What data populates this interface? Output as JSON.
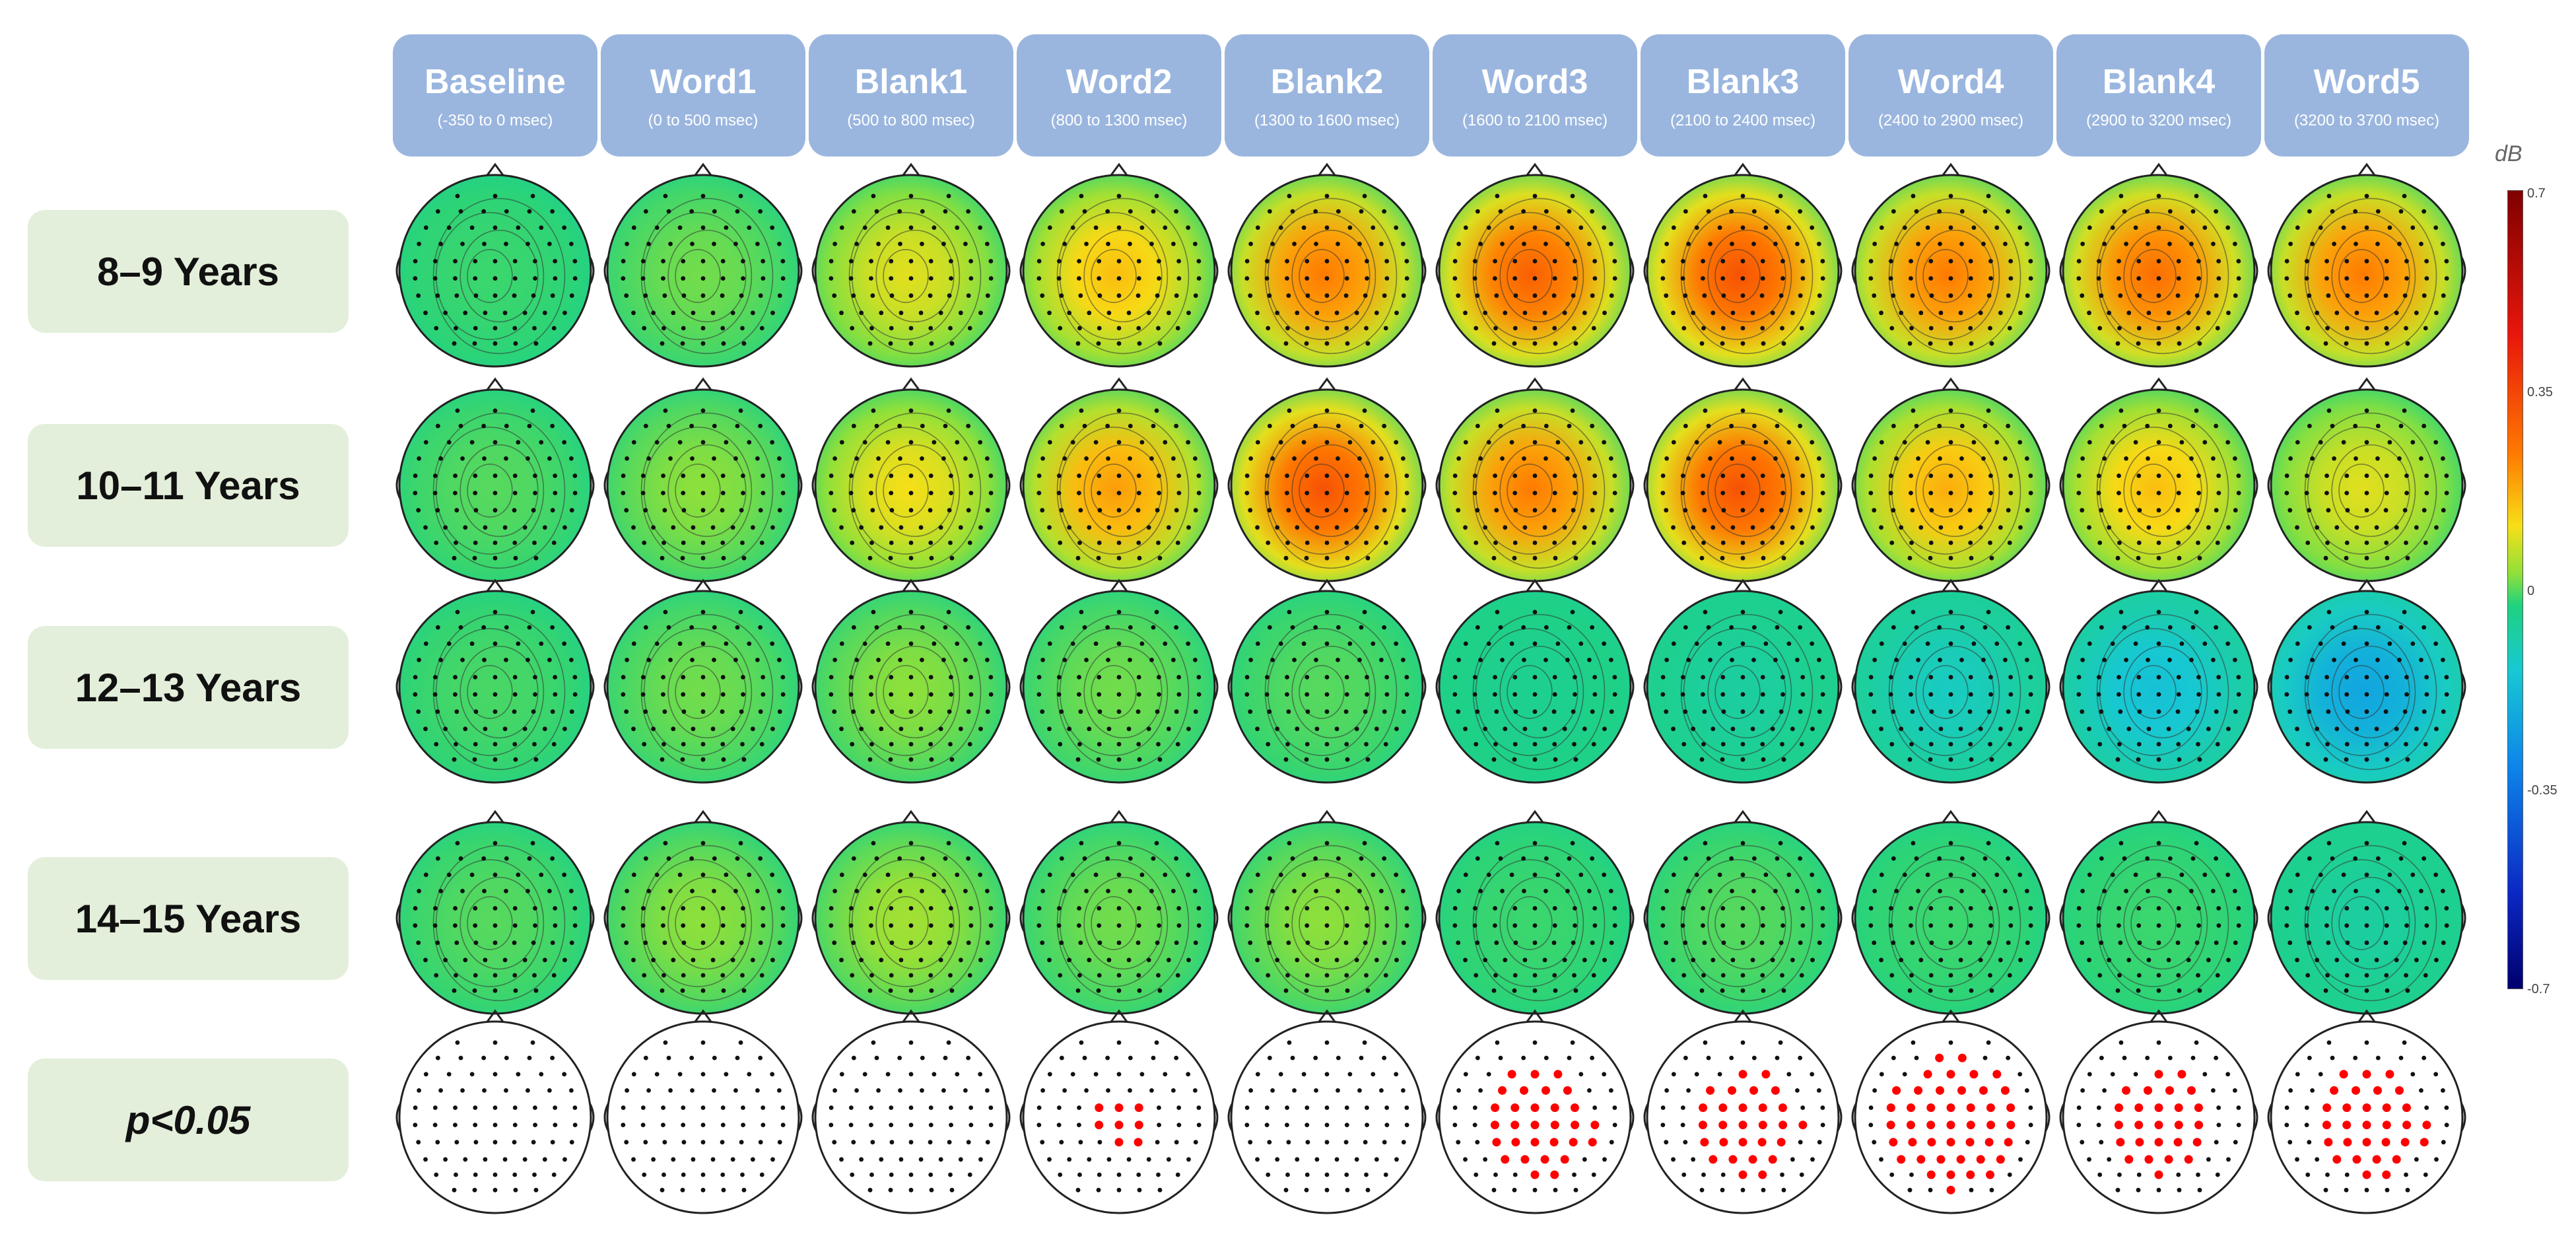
{
  "columns": [
    {
      "title": "Baseline",
      "range": "(-350 to 0 msec)"
    },
    {
      "title": "Word1",
      "range": "(0 to 500 msec)"
    },
    {
      "title": "Blank1",
      "range": "(500 to 800 msec)"
    },
    {
      "title": "Word2",
      "range": "(800 to 1300 msec)"
    },
    {
      "title": "Blank2",
      "range": "(1300 to 1600 msec)"
    },
    {
      "title": "Word3",
      "range": "(1600 to 2100 msec)"
    },
    {
      "title": "Blank3",
      "range": "(2100 to 2400 msec)"
    },
    {
      "title": "Word4",
      "range": "(2400 to 2900 msec)"
    },
    {
      "title": "Blank4",
      "range": "(2900 to 3200 msec)"
    },
    {
      "title": "Word5",
      "range": "(3200 to 3700 msec)"
    }
  ],
  "rows": [
    {
      "label": "8–9 Years",
      "italic": false
    },
    {
      "label": "10–11 Years",
      "italic": false
    },
    {
      "label": "12–13 Years",
      "italic": false
    },
    {
      "label": "14–15 Years",
      "italic": false
    },
    {
      "label": "p<0.05",
      "italic": true
    }
  ],
  "colorbar": {
    "unit": "dB",
    "ticks": [
      "0.7",
      "0.35",
      "0",
      "-0.35",
      "-0.7"
    ],
    "colors": {
      "max": "#7f0000",
      "high": "#e8160c",
      "mid_high": "#f7df17",
      "zero": "#1fd27f",
      "mid_low": "#17c9d2",
      "low": "#0d86ea",
      "min": "#00006e"
    }
  },
  "topomap_values": [
    [
      0.02,
      0.06,
      0.16,
      0.22,
      0.3,
      0.34,
      0.36,
      0.3,
      0.32,
      0.3
    ],
    [
      0.04,
      0.08,
      0.18,
      0.26,
      0.36,
      0.3,
      0.36,
      0.24,
      0.22,
      0.16
    ],
    [
      0.03,
      0.06,
      0.08,
      0.06,
      0.04,
      -0.02,
      -0.04,
      -0.08,
      -0.12,
      -0.18
    ],
    [
      0.04,
      0.08,
      0.1,
      0.06,
      0.08,
      0.02,
      0.04,
      0.02,
      0.02,
      -0.04
    ]
  ],
  "significance_counts": [
    0,
    0,
    0,
    8,
    0,
    30,
    28,
    44,
    26,
    30
  ],
  "colors": {
    "header_bg": "#9ab6df",
    "row_label_bg": "#e3efda",
    "significant_electrode": "#ff0000",
    "electrode": "#111111"
  }
}
